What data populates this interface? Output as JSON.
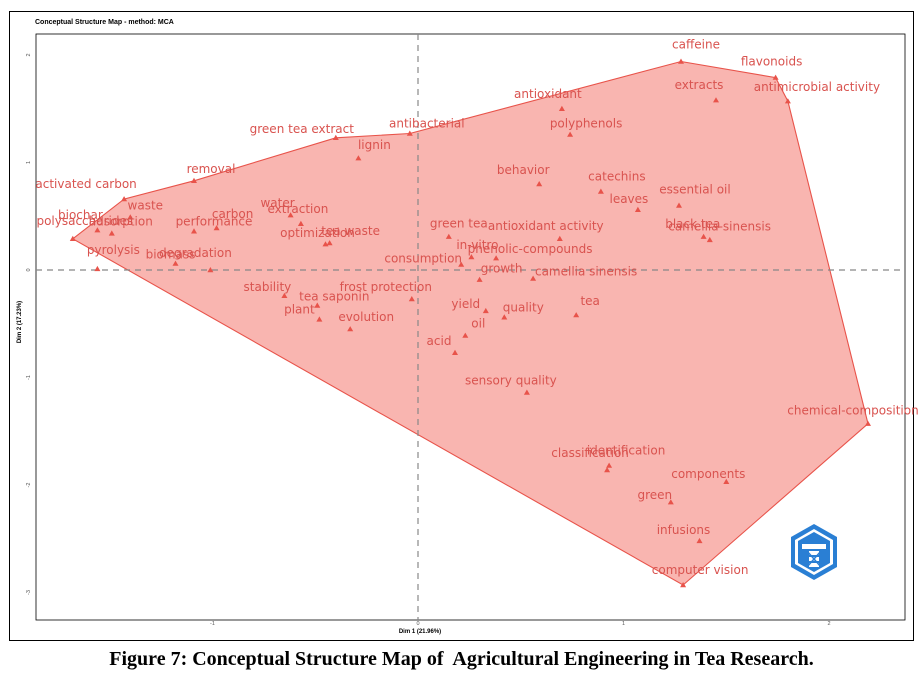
{
  "chart_data": {
    "type": "scatter",
    "title": "Conceptual Structure Map - method: MCA",
    "xlabel": "Dim 1 (21.96%)",
    "ylabel": "Dim 2 (17.23%)",
    "xlim": [
      -2.0,
      2.4
    ],
    "ylim": [
      -3.1,
      2.2
    ],
    "x_ticks": [
      -1,
      0,
      1,
      2
    ],
    "y_ticks": [
      2,
      1,
      0,
      -1,
      -2,
      -3
    ],
    "x_tick_labels": [
      "-1",
      "0",
      "1",
      "2"
    ],
    "y_tick_labels": [
      "2",
      "1",
      "0",
      "-1",
      "-2",
      "-3"
    ],
    "grid": false,
    "reference_lines": {
      "x": 0,
      "y": 0
    },
    "colors": {
      "cluster_fill": "#f8a8a2",
      "cluster_stroke": "#e8534a",
      "point": "#e8534a",
      "label": "#d9534f",
      "ref_line": "#888888"
    },
    "cluster_hull": [
      "caffeine",
      "flavonoids",
      "antimicrobial activity",
      "chemical-composition",
      "computer vision",
      "polysaccharides",
      "activated carbon",
      "removal",
      "green tea extract",
      "antibacterial"
    ],
    "points": [
      {
        "label": "caffeine",
        "x": 1.28,
        "y": 1.94
      },
      {
        "label": "flavonoids",
        "x": 1.74,
        "y": 1.79
      },
      {
        "label": "extracts",
        "x": 1.45,
        "y": 1.58
      },
      {
        "label": "antimicrobial activity",
        "x": 1.8,
        "y": 1.57
      },
      {
        "label": "antioxidant",
        "x": 0.7,
        "y": 1.5
      },
      {
        "label": "antibacterial",
        "x": -0.04,
        "y": 1.27
      },
      {
        "label": "polyphenols",
        "x": 0.74,
        "y": 1.26
      },
      {
        "label": "green tea extract",
        "x": -0.4,
        "y": 1.23
      },
      {
        "label": "lignin",
        "x": -0.29,
        "y": 1.04
      },
      {
        "label": "removal",
        "x": -1.09,
        "y": 0.83
      },
      {
        "label": "behavior",
        "x": 0.59,
        "y": 0.8
      },
      {
        "label": "catechins",
        "x": 0.89,
        "y": 0.73
      },
      {
        "label": "essential oil",
        "x": 1.27,
        "y": 0.6
      },
      {
        "label": "activated carbon",
        "x": -1.43,
        "y": 0.66
      },
      {
        "label": "leaves",
        "x": 1.07,
        "y": 0.56
      },
      {
        "label": "water",
        "x": -0.62,
        "y": 0.51
      },
      {
        "label": "waste",
        "x": -1.4,
        "y": 0.49
      },
      {
        "label": "carbon",
        "x": -0.98,
        "y": 0.39
      },
      {
        "label": "biochar",
        "x": -1.56,
        "y": 0.37
      },
      {
        "label": "adsorption",
        "x": -1.49,
        "y": 0.34
      },
      {
        "label": "extraction",
        "x": -0.57,
        "y": 0.43
      },
      {
        "label": "green tea",
        "x": 0.15,
        "y": 0.31
      },
      {
        "label": "antioxidant activity",
        "x": 0.69,
        "y": 0.29
      },
      {
        "label": "camellia-sinensis",
        "x": 1.39,
        "y": 0.31
      },
      {
        "label": "performance",
        "x": -1.09,
        "y": 0.36
      },
      {
        "label": "tea waste",
        "x": -0.43,
        "y": 0.25
      },
      {
        "label": "black tea",
        "x": 1.42,
        "y": 0.28
      },
      {
        "label": "polysaccharides",
        "x": -1.68,
        "y": 0.29
      },
      {
        "label": "in-vitro",
        "x": 0.26,
        "y": 0.12
      },
      {
        "label": "biomass",
        "x": -1.18,
        "y": 0.06
      },
      {
        "label": "optimization",
        "x": -0.45,
        "y": 0.24
      },
      {
        "label": "phenolic-compounds",
        "x": 0.38,
        "y": 0.11
      },
      {
        "label": "consumption",
        "x": 0.21,
        "y": 0.05
      },
      {
        "label": "pyrolysis",
        "x": -1.56,
        "y": 0.01
      },
      {
        "label": "degradation",
        "x": -1.01,
        "y": 0.0
      },
      {
        "label": "camellia sinensis",
        "x": 0.56,
        "y": -0.08
      },
      {
        "label": "stability",
        "x": -0.65,
        "y": -0.24
      },
      {
        "label": "frost protection",
        "x": -0.03,
        "y": -0.27
      },
      {
        "label": "growth",
        "x": 0.3,
        "y": -0.09
      },
      {
        "label": "tea saponin",
        "x": -0.49,
        "y": -0.33
      },
      {
        "label": "tea",
        "x": 0.77,
        "y": -0.42
      },
      {
        "label": "yield",
        "x": 0.33,
        "y": -0.38
      },
      {
        "label": "plant",
        "x": -0.48,
        "y": -0.46
      },
      {
        "label": "quality",
        "x": 0.42,
        "y": -0.44
      },
      {
        "label": "oil",
        "x": 0.23,
        "y": -0.61
      },
      {
        "label": "evolution",
        "x": -0.33,
        "y": -0.55
      },
      {
        "label": "acid",
        "x": 0.18,
        "y": -0.77
      },
      {
        "label": "sensory quality",
        "x": 0.53,
        "y": -1.14
      },
      {
        "label": "chemical-composition",
        "x": 2.19,
        "y": -1.43
      },
      {
        "label": "identification",
        "x": 0.93,
        "y": -1.82
      },
      {
        "label": "classification",
        "x": 0.92,
        "y": -1.86
      },
      {
        "label": "components",
        "x": 1.5,
        "y": -1.97
      },
      {
        "label": "green",
        "x": 1.23,
        "y": -2.16
      },
      {
        "label": "infusions",
        "x": 1.37,
        "y": -2.52
      },
      {
        "label": "computer vision",
        "x": 1.29,
        "y": -2.93
      }
    ]
  },
  "caption": "Figure 7: Conceptual Structure Map of  Agricultural Engineering in Tea Research."
}
